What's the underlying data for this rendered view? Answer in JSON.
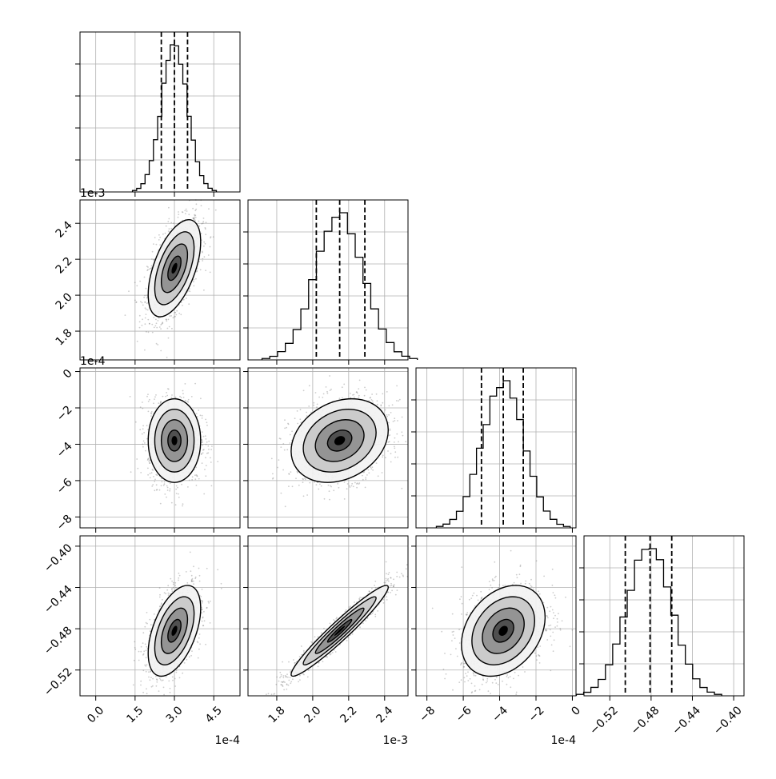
{
  "chart_data": {
    "type": "corner",
    "parameters": [
      {
        "index": 0,
        "label": "",
        "unit_offset": "1e-4",
        "range": [
          -0.6,
          5.5
        ],
        "ticks": [
          0.0,
          1.5,
          3.0,
          4.5
        ],
        "tick_labels": [
          "0.0",
          "1.5",
          "3.0",
          "4.5"
        ],
        "quantiles": [
          2.5,
          3.0,
          3.5
        ],
        "mean": 3.0,
        "std": 0.5
      },
      {
        "index": 1,
        "label": "",
        "unit_offset": "1e-3",
        "range": [
          1.64,
          2.53
        ],
        "ticks": [
          1.8,
          2.0,
          2.2,
          2.4
        ],
        "tick_labels": [
          "1.8",
          "2.0",
          "2.2",
          "2.4"
        ],
        "quantiles": [
          2.02,
          2.15,
          2.29
        ],
        "mean": 2.15,
        "std": 0.135
      },
      {
        "index": 2,
        "label": "",
        "unit_offset": "1e-4",
        "range": [
          -8.6,
          0.2
        ],
        "ticks": [
          -8,
          -6,
          -4,
          -2,
          0
        ],
        "tick_labels": [
          "−8",
          "−6",
          "−4",
          "−2",
          "0"
        ],
        "quantiles": [
          -5.0,
          -3.8,
          -2.7
        ],
        "mean": -3.8,
        "std": 1.15
      },
      {
        "index": 3,
        "label": "",
        "unit_offset": "",
        "range": [
          -0.545,
          -0.39
        ],
        "ticks": [
          -0.52,
          -0.48,
          -0.44,
          -0.4
        ],
        "tick_labels": [
          "−0.52",
          "−0.48",
          "−0.44",
          "−0.40"
        ],
        "y_tick_labels": [
          "−0.40",
          "−0.44",
          "−0.48",
          "−0.52"
        ],
        "quantiles": [
          -0.505,
          -0.481,
          -0.46
        ],
        "mean": -0.482,
        "std": 0.022
      }
    ],
    "correlations": {
      "1-0": 0.55,
      "2-0": 0.0,
      "2-1": 0.25,
      "3-0": 0.5,
      "3-1": 0.96,
      "3-2": 0.3
    },
    "histogram_bins": 20,
    "contour_levels": 4,
    "grid": true,
    "quantile_line_style": "dashed"
  }
}
